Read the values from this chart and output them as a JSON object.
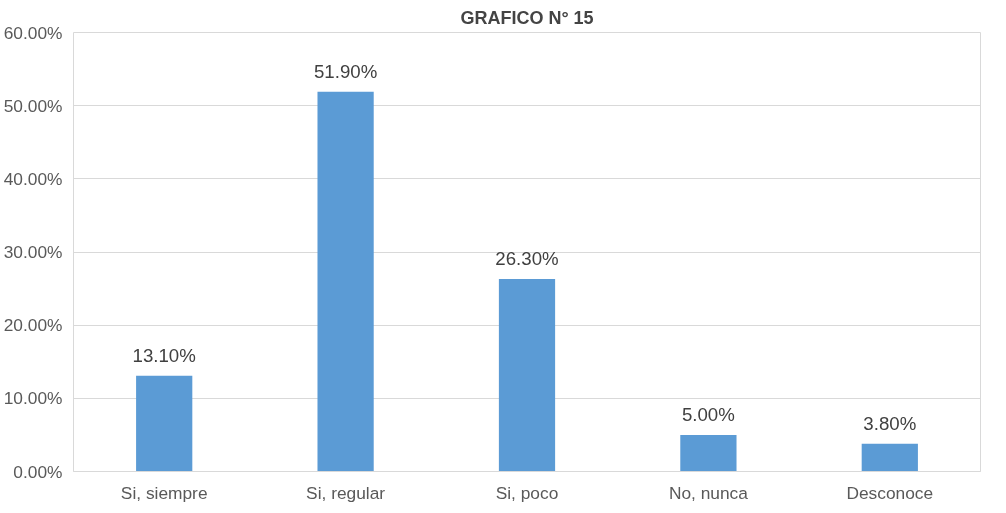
{
  "chart_data": {
    "type": "bar",
    "title": "GRAFICO N° 15",
    "categories": [
      "Si, siempre",
      "Si, regular",
      "Si, poco",
      "No, nunca",
      "Desconoce"
    ],
    "values": [
      13.1,
      51.9,
      26.3,
      5.0,
      3.8
    ],
    "value_labels": [
      "13.10%",
      "51.90%",
      "26.30%",
      "5.00%",
      "3.80%"
    ],
    "color": "#5b9bd5",
    "ylim": [
      0,
      60
    ],
    "yticks": [
      {
        "value": 0,
        "label": "0.00%"
      },
      {
        "value": 10,
        "label": "10.00%"
      },
      {
        "value": 20,
        "label": "20.00%"
      },
      {
        "value": 30,
        "label": "30.00%"
      },
      {
        "value": 40,
        "label": "40.00%"
      },
      {
        "value": 50,
        "label": "50.00%"
      },
      {
        "value": 60,
        "label": "60.00%"
      }
    ],
    "grid": "y"
  }
}
